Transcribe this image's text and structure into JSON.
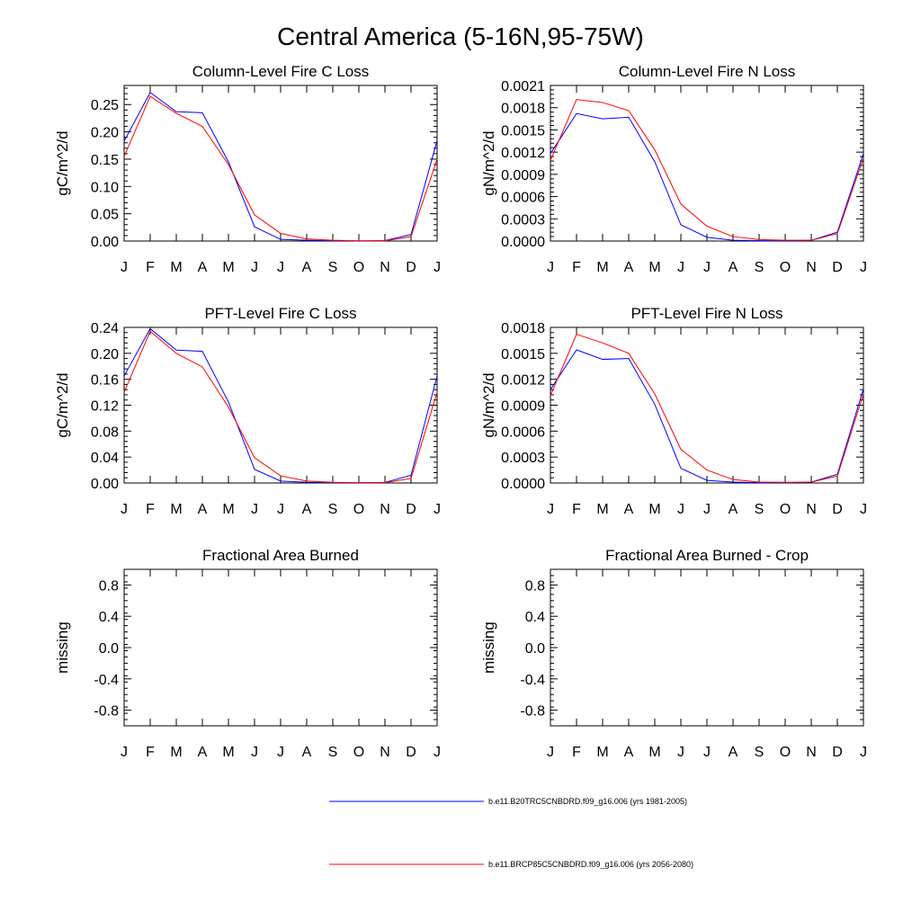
{
  "figure": {
    "title": "Central America (5-16N,95-75W)"
  },
  "legend": {
    "entries": [
      {
        "label": "b.e11.B20TRC5CNBDRD.f09_g16.006 (yrs 1981-2005)",
        "color": "#0000ff"
      },
      {
        "label": "b.e11.BRCP85C5CNBDRD.f09_g16.006 (yrs 2056-2080)",
        "color": "#ff0000"
      }
    ]
  },
  "chart_data": [
    {
      "type": "line",
      "title": "Column-Level Fire C Loss",
      "xlabel": "",
      "ylabel": "gC/m^2/d",
      "categories": [
        "J",
        "F",
        "M",
        "A",
        "M",
        "J",
        "J",
        "A",
        "S",
        "O",
        "N",
        "D",
        "J"
      ],
      "ylim": [
        0,
        0.285
      ],
      "yticks": [
        0,
        0.05,
        0.1,
        0.15,
        0.2,
        0.25
      ],
      "ytick_labels": [
        "0.00",
        "0.05",
        "0.10",
        "0.15",
        "0.20",
        "0.25"
      ],
      "series": [
        {
          "name": "b.e11.B20TRC5CNBDRD.f09_g16.006 (yrs 1981-2005)",
          "color": "#0000ff",
          "values": [
            0.183,
            0.272,
            0.237,
            0.235,
            0.145,
            0.026,
            0.003,
            0.0015,
            0.0005,
            0.0003,
            0.0008,
            0.012,
            0.184
          ]
        },
        {
          "name": "b.e11.BRCP85C5CNBDRD.f09_g16.006 (yrs 2056-2080)",
          "color": "#ff0000",
          "values": [
            0.155,
            0.265,
            0.234,
            0.21,
            0.14,
            0.048,
            0.014,
            0.004,
            0.0015,
            0.0005,
            0.0005,
            0.008,
            0.15
          ]
        }
      ]
    },
    {
      "type": "line",
      "title": "Column-Level Fire N Loss",
      "xlabel": "",
      "ylabel": "gN/m^2/d",
      "categories": [
        "J",
        "F",
        "M",
        "A",
        "M",
        "J",
        "J",
        "A",
        "S",
        "O",
        "N",
        "D",
        "J"
      ],
      "ylim": [
        0,
        0.0021
      ],
      "yticks": [
        0,
        0.0003,
        0.0006,
        0.0009,
        0.0012,
        0.0015,
        0.0018,
        0.0021
      ],
      "ytick_labels": [
        "0.0000",
        "0.0003",
        "0.0006",
        "0.0009",
        "0.0012",
        "0.0015",
        "0.0018",
        "0.0021"
      ],
      "series": [
        {
          "name": "b.e11.B20TRC5CNBDRD.f09_g16.006 (yrs 1981-2005)",
          "color": "#0000ff",
          "values": [
            0.00118,
            0.00172,
            0.00165,
            0.00167,
            0.00107,
            0.00022,
            5e-05,
            1e-05,
            5e-06,
            3e-06,
            1e-05,
            0.00012,
            0.00118
          ]
        },
        {
          "name": "b.e11.BRCP85C5CNBDRD.f09_g16.006 (yrs 2056-2080)",
          "color": "#ff0000",
          "values": [
            0.00109,
            0.00191,
            0.00187,
            0.00176,
            0.00123,
            0.0005,
            0.0002,
            6e-05,
            2e-05,
            1e-05,
            1e-05,
            0.0001,
            0.00112
          ]
        }
      ]
    },
    {
      "type": "line",
      "title": "PFT-Level Fire C Loss",
      "xlabel": "",
      "ylabel": "gC/m^2/d",
      "categories": [
        "J",
        "F",
        "M",
        "A",
        "M",
        "J",
        "J",
        "A",
        "S",
        "O",
        "N",
        "D",
        "J"
      ],
      "ylim": [
        0,
        0.24
      ],
      "yticks": [
        0,
        0.04,
        0.08,
        0.12,
        0.16,
        0.2,
        0.24
      ],
      "ytick_labels": [
        "0.00",
        "0.04",
        "0.08",
        "0.12",
        "0.16",
        "0.20",
        "0.24"
      ],
      "series": [
        {
          "name": "b.e11.B20TRC5CNBDRD.f09_g16.006 (yrs 1981-2005)",
          "color": "#0000ff",
          "values": [
            0.165,
            0.238,
            0.205,
            0.203,
            0.125,
            0.021,
            0.003,
            0.001,
            0.0005,
            0.0003,
            0.0008,
            0.012,
            0.165
          ]
        },
        {
          "name": "b.e11.BRCP85C5CNBDRD.f09_g16.006 (yrs 2056-2080)",
          "color": "#ff0000",
          "values": [
            0.14,
            0.234,
            0.2,
            0.179,
            0.117,
            0.039,
            0.011,
            0.003,
            0.001,
            0.0005,
            0.0005,
            0.007,
            0.14
          ]
        }
      ]
    },
    {
      "type": "line",
      "title": "PFT-Level Fire N Loss",
      "xlabel": "",
      "ylabel": "gN/m^2/d",
      "categories": [
        "J",
        "F",
        "M",
        "A",
        "M",
        "J",
        "J",
        "A",
        "S",
        "O",
        "N",
        "D",
        "J"
      ],
      "ylim": [
        0,
        0.0018
      ],
      "yticks": [
        0,
        0.0003,
        0.0006,
        0.0009,
        0.0012,
        0.0015,
        0.0018
      ],
      "ytick_labels": [
        "0.0000",
        "0.0003",
        "0.0006",
        "0.0009",
        "0.0012",
        "0.0015",
        "0.0018"
      ],
      "series": [
        {
          "name": "b.e11.B20TRC5CNBDRD.f09_g16.006 (yrs 1981-2005)",
          "color": "#0000ff",
          "values": [
            0.00108,
            0.00154,
            0.00143,
            0.00144,
            0.00091,
            0.00017,
            3e-05,
            1e-05,
            4e-06,
            2e-06,
            1e-05,
            0.0001,
            0.00109
          ]
        },
        {
          "name": "b.e11.BRCP85C5CNBDRD.f09_g16.006 (yrs 2056-2080)",
          "color": "#ff0000",
          "values": [
            0.00101,
            0.00172,
            0.00162,
            0.0015,
            0.00103,
            0.00039,
            0.00015,
            4e-05,
            1e-05,
            8e-06,
            1e-05,
            8e-05,
            0.00103
          ]
        }
      ]
    },
    {
      "type": "line",
      "title": "Fractional Area Burned",
      "xlabel": "",
      "ylabel": "missing",
      "categories": [
        "J",
        "F",
        "M",
        "A",
        "M",
        "J",
        "J",
        "A",
        "S",
        "O",
        "N",
        "D",
        "J"
      ],
      "ylim": [
        -1.0,
        1.0
      ],
      "yticks": [
        -0.8,
        -0.4,
        0.0,
        0.4,
        0.8
      ],
      "ytick_labels": [
        "-0.8",
        "-0.4",
        "0.0",
        "0.4",
        "0.8"
      ],
      "series": []
    },
    {
      "type": "line",
      "title": "Fractional Area Burned - Crop",
      "xlabel": "",
      "ylabel": "missing",
      "categories": [
        "J",
        "F",
        "M",
        "A",
        "M",
        "J",
        "J",
        "A",
        "S",
        "O",
        "N",
        "D",
        "J"
      ],
      "ylim": [
        -1.0,
        1.0
      ],
      "yticks": [
        -0.8,
        -0.4,
        0.0,
        0.4,
        0.8
      ],
      "ytick_labels": [
        "-0.8",
        "-0.4",
        "0.0",
        "0.4",
        "0.8"
      ],
      "series": []
    }
  ]
}
